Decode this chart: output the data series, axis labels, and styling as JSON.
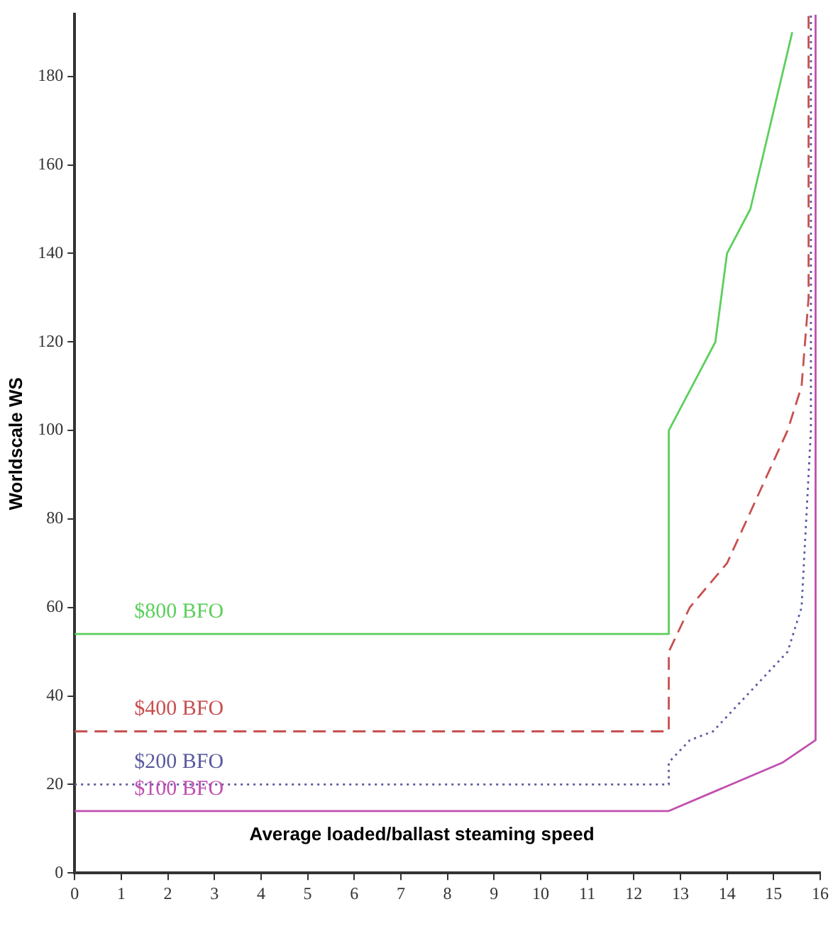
{
  "chart_data": {
    "type": "line",
    "xlabel": "Average loaded/ballast steaming speed",
    "ylabel": "Worldscale WS",
    "xlim": [
      0,
      16
    ],
    "ylim": [
      0,
      194
    ],
    "xticks": [
      0,
      1,
      2,
      3,
      4,
      5,
      6,
      7,
      8,
      9,
      10,
      11,
      12,
      13,
      14,
      15,
      16
    ],
    "yticks": [
      0,
      20,
      40,
      60,
      80,
      100,
      120,
      140,
      160,
      180
    ],
    "grid": false,
    "legend": false,
    "marker": "none",
    "series": [
      {
        "name": "$800 BFO",
        "color": "#5ccf5c",
        "line_style": "solid",
        "x": [
          0,
          12.75,
          12.75,
          13.75,
          14,
          14.5,
          15.4
        ],
        "values": [
          54,
          54,
          100,
          120,
          140,
          150,
          190
        ]
      },
      {
        "name": "$400 BFO",
        "color": "#c85050",
        "line_style": "dashed",
        "x": [
          0,
          12.75,
          12.75,
          13.2,
          14,
          15.3,
          15.6,
          15.75,
          15.75
        ],
        "values": [
          32,
          32,
          50,
          60,
          70,
          100,
          110,
          130,
          194
        ]
      },
      {
        "name": "$200 BFO",
        "color": "#5a5aa0",
        "line_style": "dotted",
        "x": [
          0,
          12.75,
          12.75,
          13.2,
          13.7,
          15.3,
          15.6,
          15.8,
          15.8
        ],
        "values": [
          20,
          20,
          25,
          30,
          32,
          50,
          60,
          100,
          194
        ]
      },
      {
        "name": "$100 BFO",
        "color": "#c050b0",
        "line_style": "solid",
        "x": [
          0,
          12.75,
          15.2,
          15.9,
          15.9
        ],
        "values": [
          14,
          14,
          25,
          30,
          194
        ]
      }
    ]
  }
}
